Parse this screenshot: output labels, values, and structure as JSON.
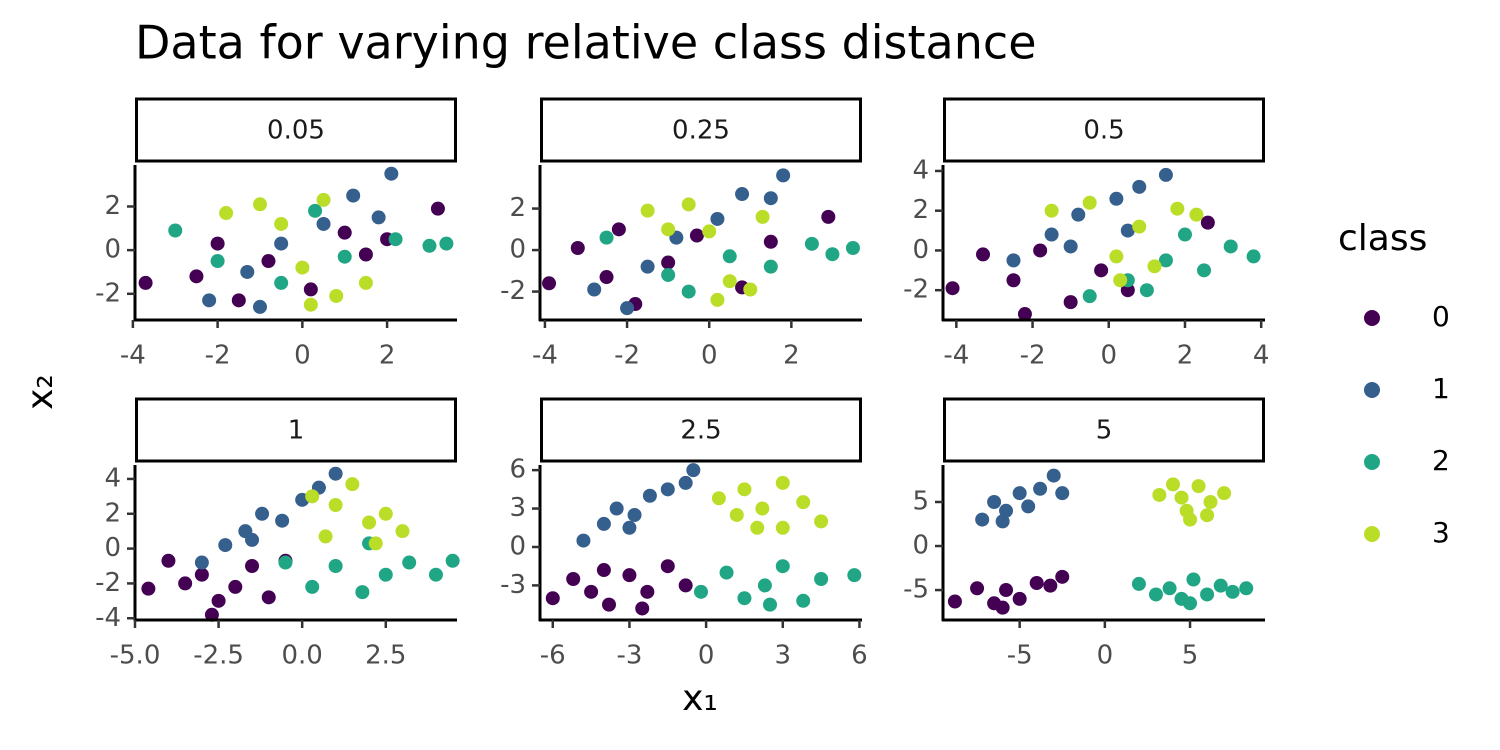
{
  "title": "Data for varying relative class distance",
  "x_label": "x₁",
  "y_label": "x₂",
  "legend_title": "class",
  "chart_data": [
    {
      "type": "scatter",
      "facet": "0.05",
      "xlim": [
        -3.95,
        3.65
      ],
      "ylim": [
        -3.2,
        3.9
      ],
      "xticks": [
        -4,
        -2,
        0,
        2
      ],
      "yticks": [
        -2,
        0,
        2
      ],
      "series": [
        {
          "name": "0",
          "color": "#440154",
          "x": [
            -3.7,
            -2.5,
            -1.5,
            -0.8,
            0.2,
            1.0,
            2.0,
            3.2,
            -2.0,
            1.5
          ],
          "values": [
            -1.5,
            -1.2,
            -2.3,
            -0.5,
            -1.8,
            0.8,
            0.5,
            1.9,
            0.3,
            -0.2
          ]
        },
        {
          "name": "1",
          "color": "#355f8d",
          "x": [
            -2.2,
            -1.3,
            -0.5,
            0.5,
            1.2,
            1.8,
            2.1,
            -1.0
          ],
          "values": [
            -2.3,
            -1.0,
            0.3,
            1.2,
            2.5,
            1.5,
            3.5,
            -2.6
          ]
        },
        {
          "name": "2",
          "color": "#21a685",
          "x": [
            -3.0,
            -2.0,
            -0.5,
            1.0,
            2.2,
            3.0,
            3.4,
            0.3
          ],
          "values": [
            0.9,
            -0.5,
            -1.5,
            -0.3,
            0.5,
            0.2,
            0.3,
            1.8
          ]
        },
        {
          "name": "3",
          "color": "#bade28",
          "x": [
            -1.8,
            -1.0,
            0.0,
            0.8,
            1.5,
            -0.5,
            0.5,
            0.2
          ],
          "values": [
            1.7,
            2.1,
            -0.8,
            -2.1,
            -1.5,
            1.2,
            2.3,
            -2.5
          ]
        }
      ]
    },
    {
      "type": "scatter",
      "facet": "0.25",
      "xlim": [
        -4.12,
        3.72
      ],
      "ylim": [
        -3.37,
        4.1
      ],
      "xticks": [
        -4,
        -2,
        0,
        2
      ],
      "yticks": [
        -2,
        0,
        2
      ],
      "series": [
        {
          "name": "0",
          "color": "#440154",
          "x": [
            -3.9,
            -3.2,
            -2.5,
            -1.8,
            -1.0,
            -0.3,
            0.8,
            1.5,
            2.9,
            -2.2
          ],
          "values": [
            -1.6,
            0.1,
            -1.3,
            -2.6,
            -0.6,
            0.7,
            -1.8,
            0.4,
            1.6,
            1.0
          ]
        },
        {
          "name": "1",
          "color": "#355f8d",
          "x": [
            -2.8,
            -1.5,
            -0.8,
            0.2,
            0.8,
            1.5,
            1.8,
            -2.0
          ],
          "values": [
            -1.9,
            -0.8,
            0.6,
            1.5,
            2.7,
            2.5,
            3.6,
            -2.8
          ]
        },
        {
          "name": "2",
          "color": "#21a685",
          "x": [
            -2.5,
            -1.0,
            0.5,
            1.5,
            2.5,
            3.0,
            3.5,
            -0.5
          ],
          "values": [
            0.6,
            -1.2,
            -0.3,
            -0.8,
            0.3,
            -0.2,
            0.1,
            -2.0
          ]
        },
        {
          "name": "3",
          "color": "#bade28",
          "x": [
            -1.5,
            -0.5,
            0.5,
            1.0,
            0.0,
            1.3,
            -1.0,
            0.2
          ],
          "values": [
            1.9,
            2.2,
            -1.5,
            -1.9,
            0.9,
            1.6,
            1.0,
            -2.4
          ]
        }
      ]
    },
    {
      "type": "scatter",
      "facet": "0.5",
      "xlim": [
        -4.35,
        4.1
      ],
      "ylim": [
        -3.5,
        4.3
      ],
      "xticks": [
        -4,
        -2,
        0,
        2,
        4
      ],
      "yticks": [
        -2,
        0,
        2,
        4
      ],
      "series": [
        {
          "name": "0",
          "color": "#440154",
          "x": [
            -4.1,
            -3.3,
            -2.5,
            -1.8,
            -1.0,
            -0.2,
            0.5,
            -2.2,
            2.6
          ],
          "values": [
            -1.9,
            -0.2,
            -1.5,
            0.0,
            -2.6,
            -1.0,
            -2.0,
            -3.2,
            1.4
          ]
        },
        {
          "name": "1",
          "color": "#355f8d",
          "x": [
            -2.5,
            -1.5,
            -0.8,
            0.2,
            0.8,
            1.5,
            -1.0,
            0.5
          ],
          "values": [
            -0.5,
            0.8,
            1.8,
            2.6,
            3.2,
            3.8,
            0.2,
            1.0
          ]
        },
        {
          "name": "2",
          "color": "#21a685",
          "x": [
            -0.5,
            0.5,
            1.5,
            2.5,
            3.2,
            3.8,
            1.0,
            2.0
          ],
          "values": [
            -2.3,
            -1.5,
            -0.5,
            -1.0,
            0.2,
            -0.3,
            -2.0,
            0.8
          ]
        },
        {
          "name": "3",
          "color": "#bade28",
          "x": [
            -1.5,
            -0.5,
            0.2,
            0.8,
            1.8,
            2.3,
            0.3,
            1.2
          ],
          "values": [
            2.0,
            2.4,
            -0.3,
            1.2,
            2.1,
            1.8,
            -1.5,
            -0.8
          ]
        }
      ]
    },
    {
      "type": "scatter",
      "facet": "1",
      "xlim": [
        -5.0,
        4.63
      ],
      "ylim": [
        -4.1,
        4.8
      ],
      "xticks": [
        {
          "value": -5,
          "label": "-5.0"
        },
        -2.5,
        {
          "value": 0,
          "label": "0.0"
        },
        2.5
      ],
      "yticks": [
        -4,
        -2,
        0,
        2,
        4
      ],
      "series": [
        {
          "name": "0",
          "color": "#440154",
          "x": [
            -4.6,
            -4.0,
            -3.5,
            -3.0,
            -2.5,
            -2.0,
            -1.5,
            -1.0,
            -0.5,
            -2.7
          ],
          "values": [
            -2.3,
            -0.7,
            -2.0,
            -1.5,
            -3.0,
            -2.2,
            -1.0,
            -2.8,
            -0.7,
            -3.8
          ]
        },
        {
          "name": "1",
          "color": "#355f8d",
          "x": [
            -3.0,
            -2.3,
            -1.7,
            -1.2,
            -0.6,
            0.0,
            0.5,
            1.0,
            -1.5
          ],
          "values": [
            -0.8,
            0.2,
            1.0,
            2.0,
            1.6,
            2.8,
            3.5,
            4.3,
            0.5
          ]
        },
        {
          "name": "2",
          "color": "#21a685",
          "x": [
            -0.5,
            0.3,
            1.0,
            1.8,
            2.5,
            3.2,
            4.0,
            4.5,
            2.0
          ],
          "values": [
            -0.8,
            -2.2,
            -1.0,
            -2.5,
            -1.5,
            -0.8,
            -1.5,
            -0.7,
            0.3
          ]
        },
        {
          "name": "3",
          "color": "#bade28",
          "x": [
            0.3,
            1.0,
            1.5,
            2.0,
            2.5,
            3.0,
            2.2,
            0.7
          ],
          "values": [
            3.0,
            2.5,
            3.7,
            1.5,
            2.0,
            1.0,
            0.3,
            0.7
          ]
        }
      ]
    },
    {
      "type": "scatter",
      "facet": "2.5",
      "xlim": [
        -6.5,
        6.1
      ],
      "ylim": [
        -5.7,
        6.4
      ],
      "xticks": [
        -6,
        -3,
        0,
        3,
        6
      ],
      "yticks": [
        -3,
        0,
        3,
        6
      ],
      "series": [
        {
          "name": "0",
          "color": "#440154",
          "x": [
            -6.0,
            -5.2,
            -4.5,
            -3.8,
            -3.0,
            -2.3,
            -1.5,
            -0.8,
            -4.0,
            -2.5
          ],
          "values": [
            -4.0,
            -2.5,
            -3.5,
            -4.5,
            -2.2,
            -3.5,
            -1.5,
            -3.0,
            -1.8,
            -4.8
          ]
        },
        {
          "name": "1",
          "color": "#355f8d",
          "x": [
            -4.8,
            -4.0,
            -3.5,
            -2.8,
            -2.2,
            -1.5,
            -0.8,
            -0.5,
            -3.0
          ],
          "values": [
            0.5,
            1.8,
            3.0,
            2.5,
            4.0,
            4.5,
            5.0,
            6.0,
            1.5
          ]
        },
        {
          "name": "2",
          "color": "#21a685",
          "x": [
            -0.2,
            0.8,
            1.5,
            2.3,
            3.0,
            3.8,
            4.5,
            5.8,
            2.5
          ],
          "values": [
            -3.5,
            -2.0,
            -4.0,
            -3.0,
            -1.5,
            -4.2,
            -2.5,
            -2.2,
            -4.5
          ]
        },
        {
          "name": "3",
          "color": "#bade28",
          "x": [
            0.5,
            1.5,
            2.2,
            3.0,
            3.8,
            4.5,
            2.0,
            1.2,
            3.0
          ],
          "values": [
            3.8,
            4.5,
            3.0,
            5.0,
            3.5,
            2.0,
            1.5,
            2.5,
            1.5
          ]
        }
      ]
    },
    {
      "type": "scatter",
      "facet": "5",
      "xlim": [
        -9.5,
        9.4
      ],
      "ylim": [
        -8.4,
        9.2
      ],
      "xticks": [
        -5,
        0,
        5
      ],
      "yticks": [
        -5,
        0,
        5
      ],
      "series": [
        {
          "name": "0",
          "color": "#440154",
          "x": [
            -8.8,
            -7.5,
            -6.5,
            -5.8,
            -5.0,
            -4.0,
            -3.2,
            -2.5,
            -6.0
          ],
          "values": [
            -6.3,
            -4.8,
            -6.5,
            -5.0,
            -6.0,
            -4.2,
            -4.5,
            -3.5,
            -7.0
          ]
        },
        {
          "name": "1",
          "color": "#355f8d",
          "x": [
            -7.2,
            -6.5,
            -5.8,
            -5.0,
            -4.5,
            -3.8,
            -3.0,
            -2.5,
            -6.0
          ],
          "values": [
            3.0,
            5.0,
            4.0,
            6.0,
            4.5,
            6.5,
            8.0,
            6.0,
            2.8
          ]
        },
        {
          "name": "2",
          "color": "#21a685",
          "x": [
            2.0,
            3.0,
            3.8,
            4.5,
            5.2,
            6.0,
            6.8,
            7.5,
            8.3,
            5.0
          ],
          "values": [
            -4.3,
            -5.5,
            -4.8,
            -6.0,
            -3.8,
            -5.5,
            -4.5,
            -5.2,
            -4.8,
            -6.5
          ]
        },
        {
          "name": "3",
          "color": "#bade28",
          "x": [
            3.2,
            4.0,
            4.8,
            5.5,
            6.2,
            7.0,
            5.0,
            6.0,
            4.5
          ],
          "values": [
            5.8,
            7.0,
            4.0,
            6.8,
            5.0,
            6.0,
            3.0,
            3.5,
            5.5
          ]
        }
      ]
    }
  ]
}
